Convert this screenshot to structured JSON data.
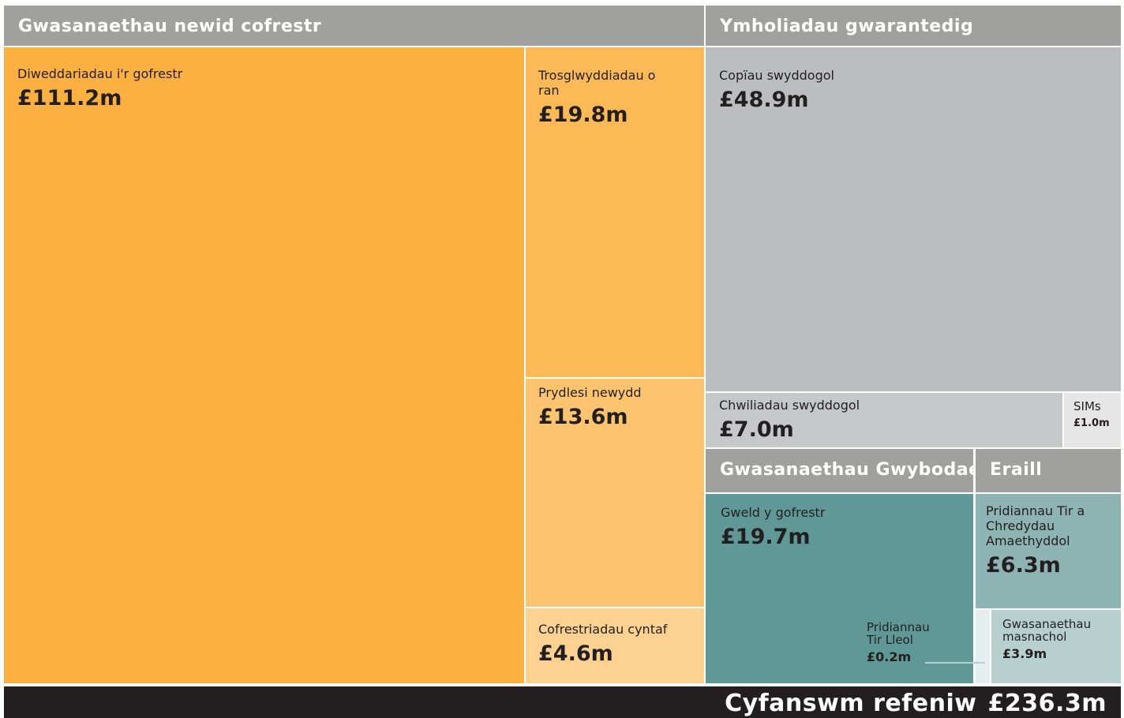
{
  "chart_data": {
    "type": "treemap",
    "groups": [
      {
        "name": "Gwasanaethau newid cofrestr",
        "color": "#a0a09f",
        "items": [
          {
            "name": "Diweddariadau i'r gofrestr",
            "value": 111.2,
            "value_label": "£111.2m",
            "color": "#fbb040"
          },
          {
            "name": "Trosglwyddiadau o ran",
            "value": 19.8,
            "value_label": "£19.8m",
            "color": "#fbba55"
          },
          {
            "name": "Prydlesi newydd",
            "value": 13.6,
            "value_label": "£13.6m",
            "color": "#fcc46f"
          },
          {
            "name": "Cofrestriadau cyntaf",
            "value": 4.6,
            "value_label": "£4.6m",
            "color": "#fdd18f"
          }
        ]
      },
      {
        "name": "Ymholiadau gwarantedig",
        "color": "#a0a09f",
        "items": [
          {
            "name": "Copïau swyddogol",
            "value": 48.9,
            "value_label": "£48.9m",
            "color": "#bcbdc0"
          },
          {
            "name": "Chwiliadau swyddogol",
            "value": 7.0,
            "value_label": "£7.0m",
            "color": "#c6c7c9"
          },
          {
            "name": "SIMs",
            "value": 1.0,
            "value_label": "£1.0m",
            "color": "#e6e6e7"
          }
        ]
      },
      {
        "name": "Gwasanaethau Gwybodaeth",
        "color": "#a0a09f",
        "items": [
          {
            "name": "Gweld y gofrestr",
            "value": 19.7,
            "value_label": "£19.7m",
            "color": "#5f9896"
          },
          {
            "name": "Pridiannau Tir Lleol",
            "value": 0.2,
            "value_label": "£0.2m",
            "color": "#e3eeee"
          }
        ]
      },
      {
        "name": "Eraill",
        "color": "#a0a09f",
        "items": [
          {
            "name": "Pridiannau Tir a Chredydau Amaethyddol",
            "value": 6.3,
            "value_label": "£6.3m",
            "color": "#8db3b3"
          },
          {
            "name": "Gwasanaethau masnachol",
            "value": 3.9,
            "value_label": "£3.9m",
            "color": "#b7cfcf"
          }
        ]
      }
    ],
    "total": {
      "name": "Cyfanswm refeniw",
      "value": 236.3,
      "value_label": "£236.3m"
    }
  }
}
